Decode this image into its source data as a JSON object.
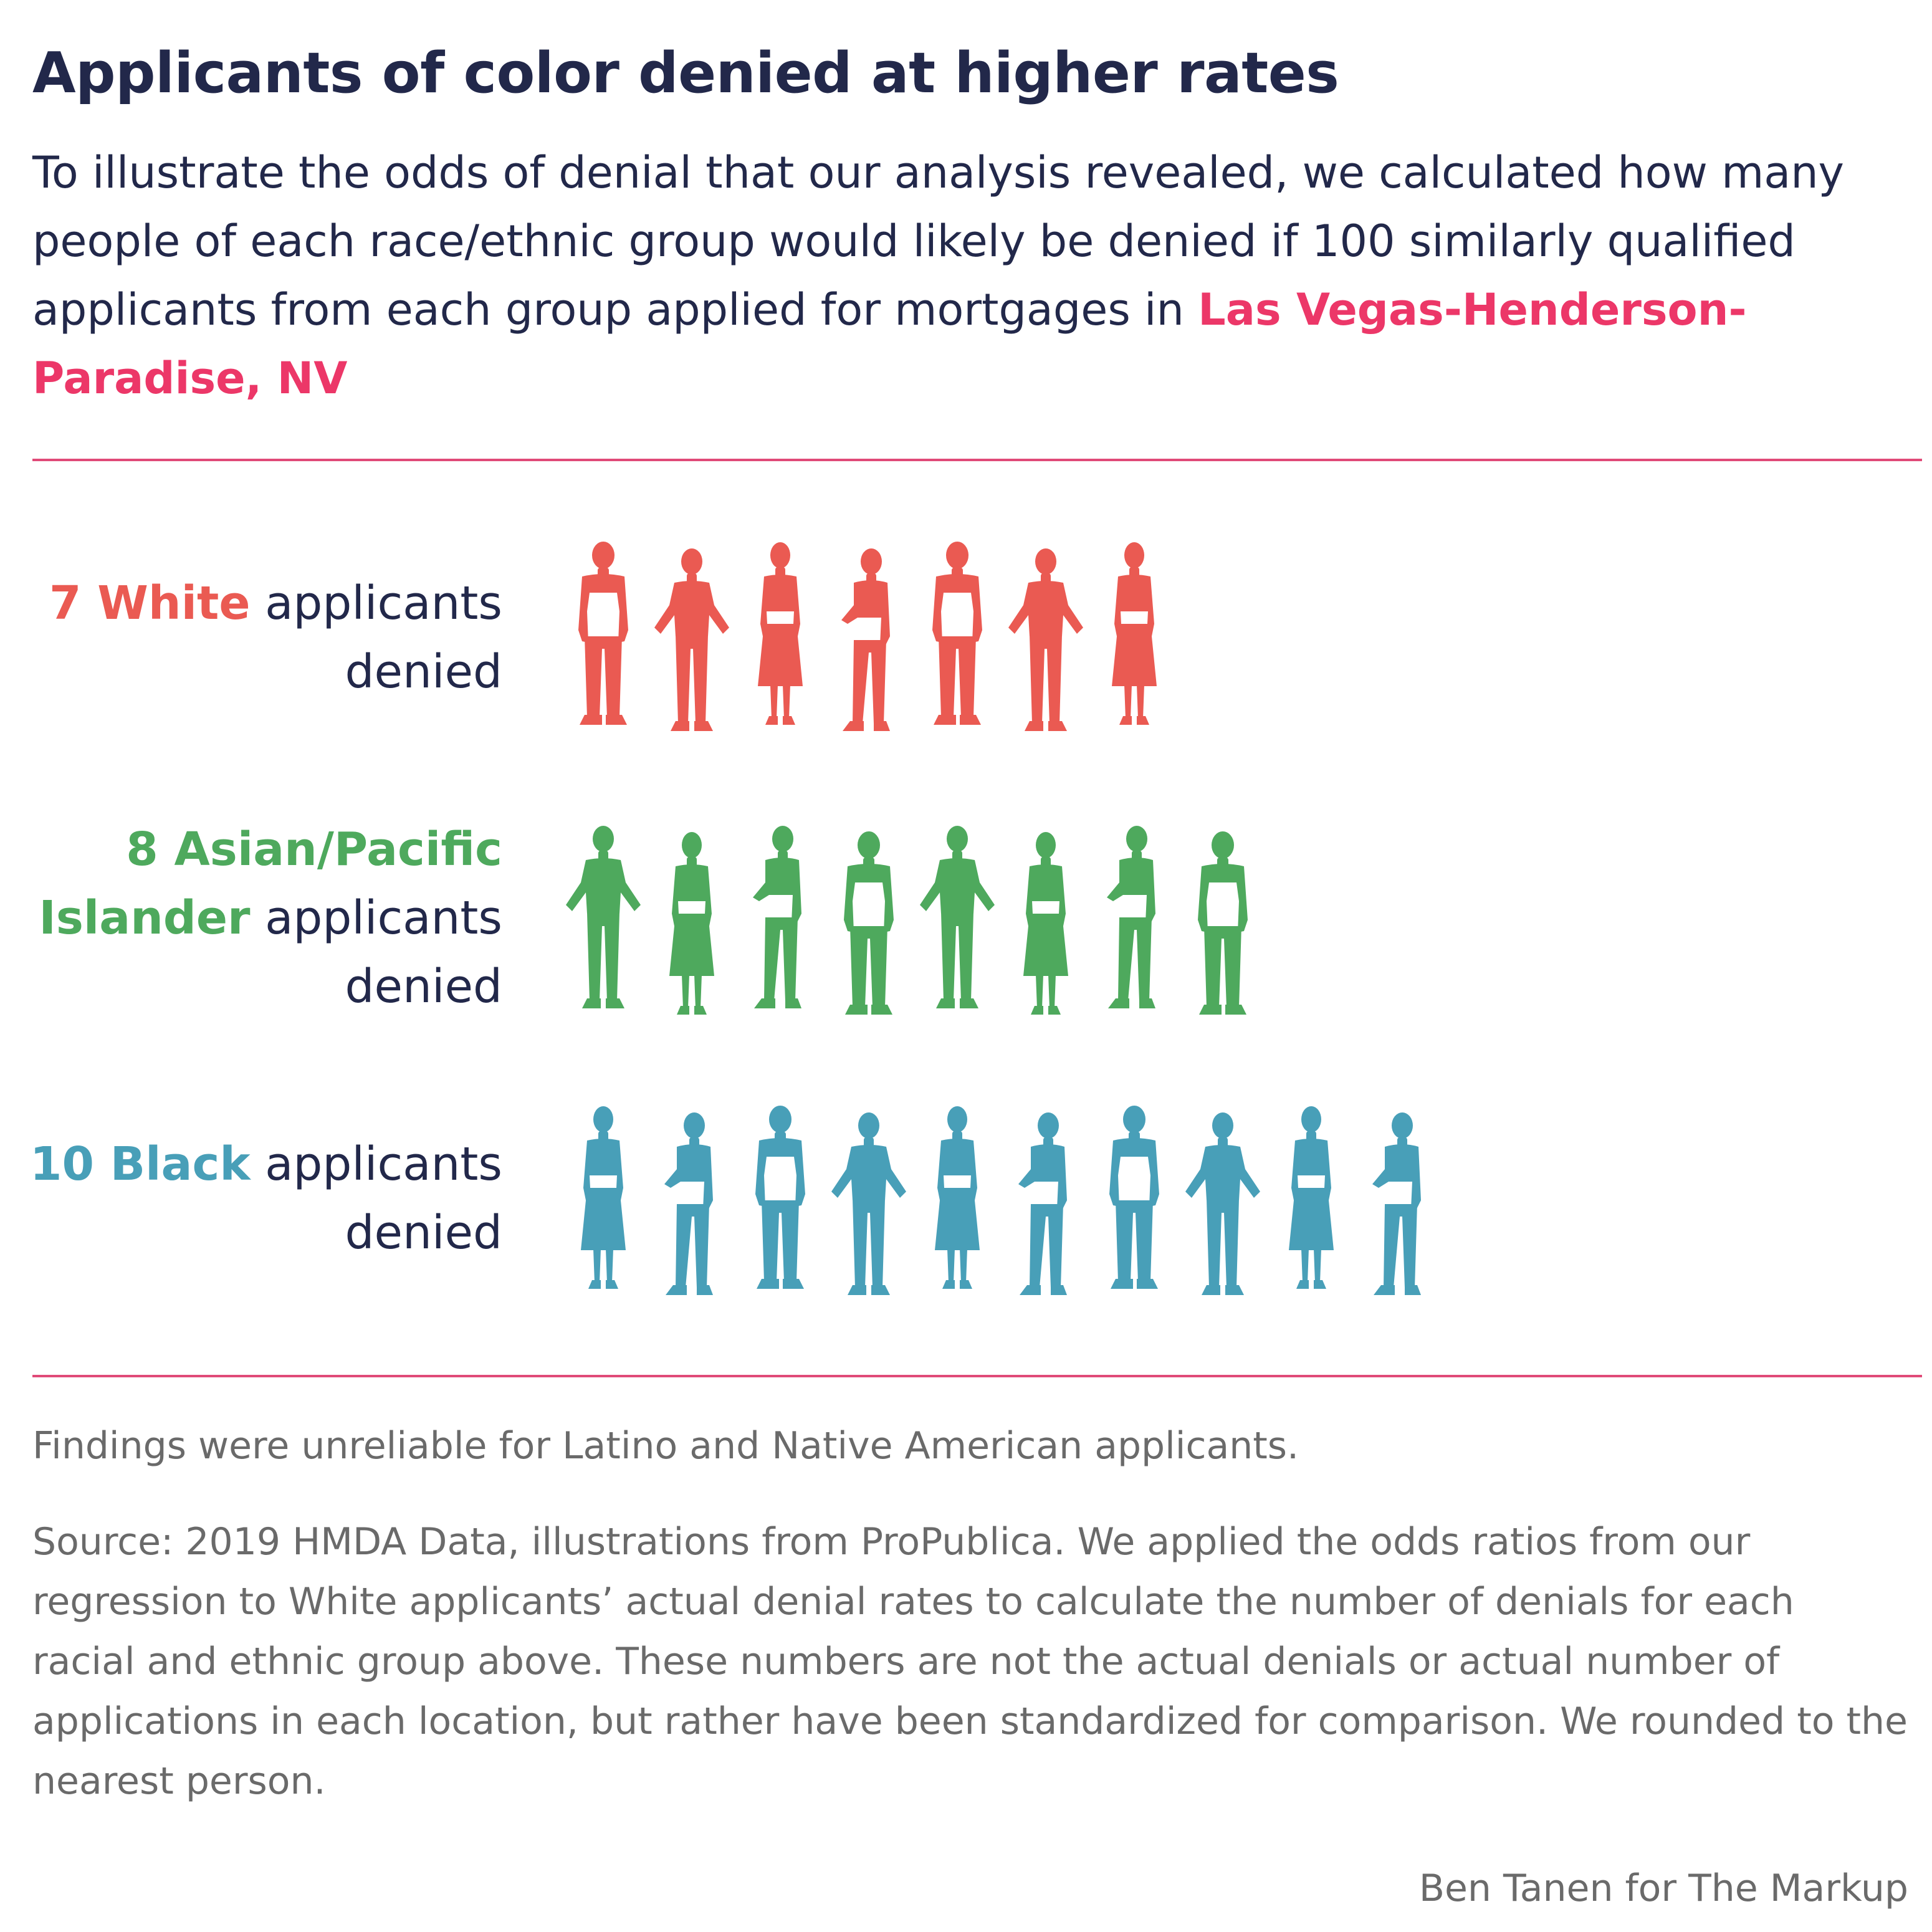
{
  "header": {
    "title": "Applicants of color denied at higher rates",
    "subtitle_text": "To illustrate the odds of denial that our analysis revealed, we calculated how many people of each race/ethnic group would likely be denied if 100 similarly qualified applicants from each group applied for mortgages in ",
    "location": "Las Vegas-Henderson-Paradise, NV"
  },
  "label_suffix": "applicants",
  "label_tail": "denied",
  "groups": [
    {
      "count_label": "7 White",
      "color": "#ea5a52"
    },
    {
      "count_label": "8 Asian/Pacific Islander",
      "color": "#4ea95d"
    },
    {
      "count_label": "10 Black",
      "color": "#489fb8"
    }
  ],
  "chart_data": {
    "type": "pictogram",
    "title": "Applicants of color denied at higher rates",
    "unit": "applicants denied per 100 similarly qualified applicants",
    "categories": [
      "White",
      "Asian/Pacific Islander",
      "Black"
    ],
    "values": [
      7,
      8,
      10
    ],
    "colors": [
      "#ea5a52",
      "#4ea95d",
      "#489fb8"
    ]
  },
  "footer": {
    "note": "Findings were unreliable for Latino and Native American applicants.",
    "source": "Source: 2019 HMDA Data, illustrations from ProPublica. We applied the odds ratios from our regression to White applicants’ actual denial rates to calculate the number of denials for each racial and ethnic group above. These numbers are not the actual denials or actual number of applications in each location, but rather have been standardized for comparison. We rounded to the nearest person.",
    "credit": "Ben Tanen for The Markup"
  },
  "icons": {
    "person": "person-silhouette-icon"
  }
}
